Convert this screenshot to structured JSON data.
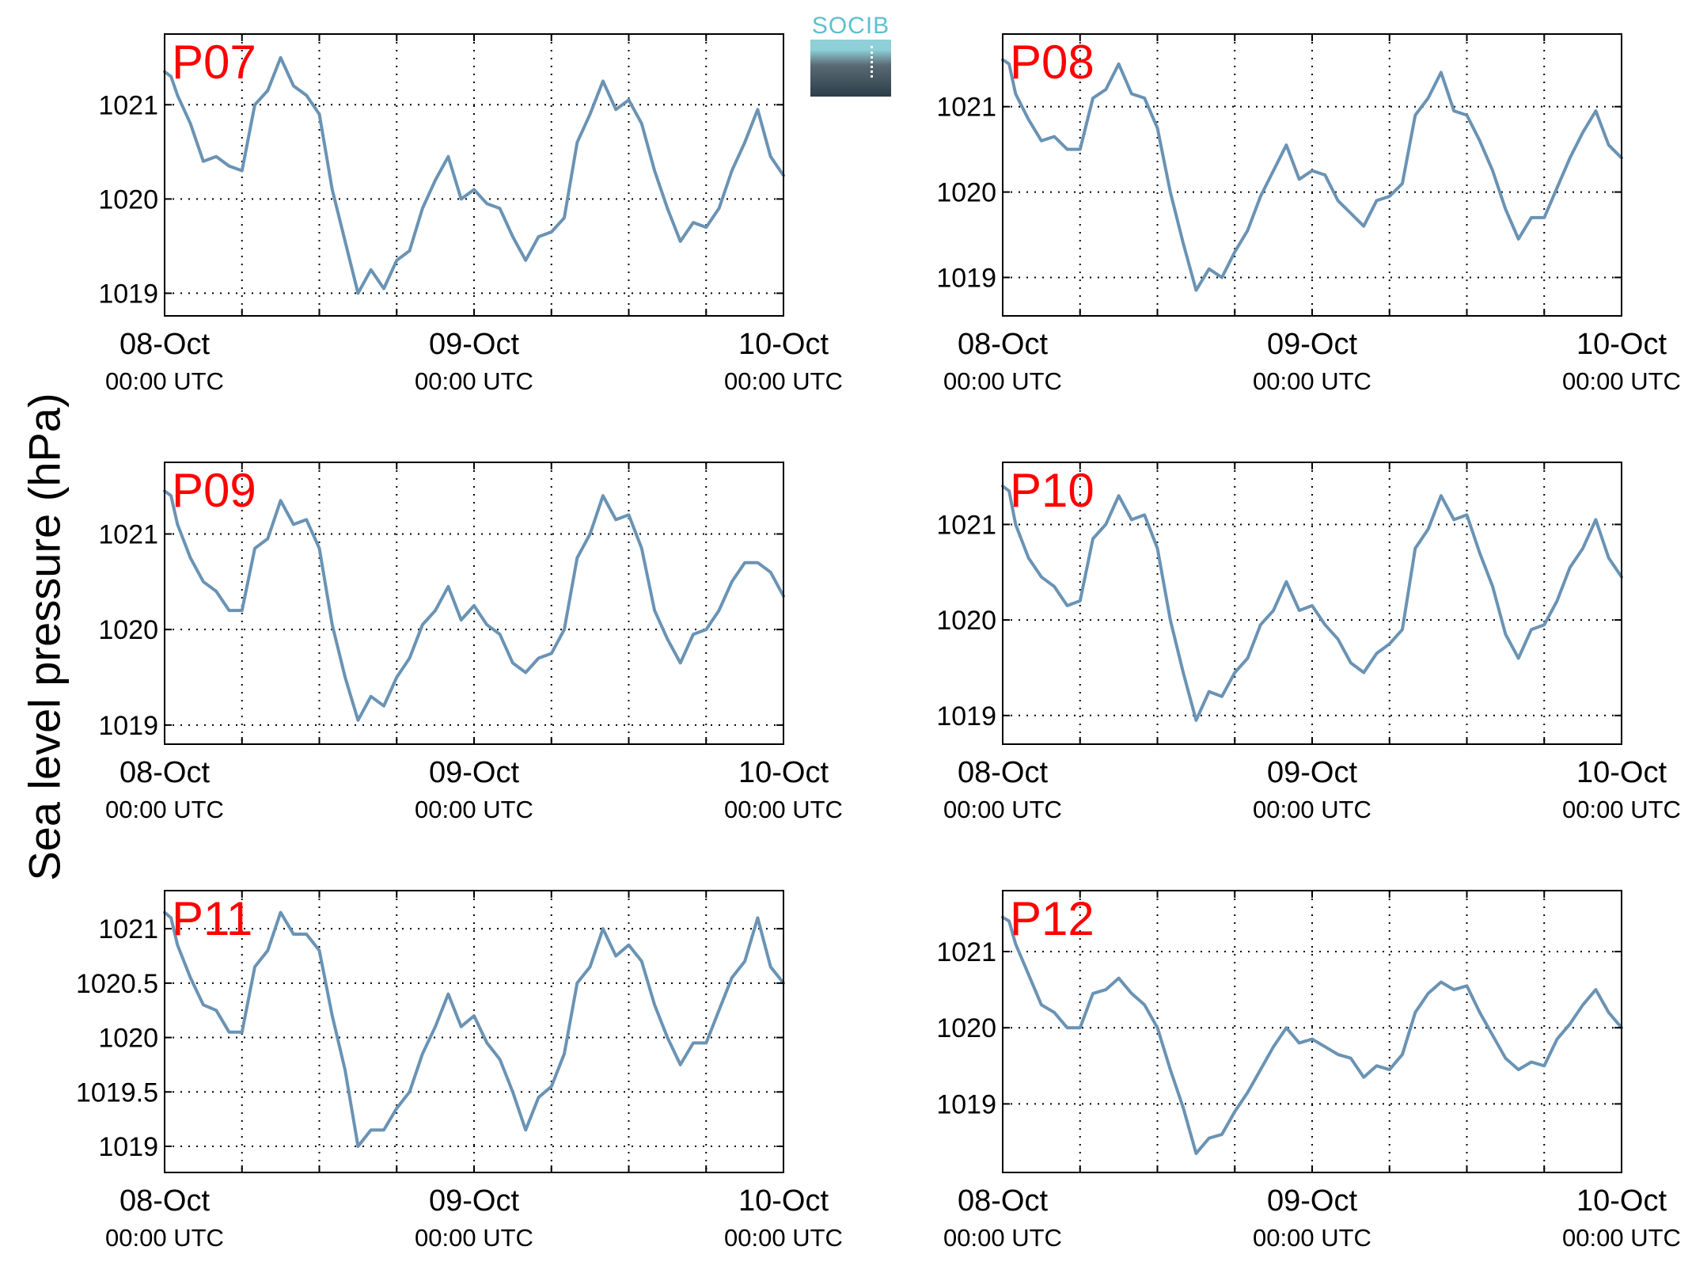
{
  "ylabel": "Sea level pressure (hPa)",
  "logo": {
    "text": "SOCIB"
  },
  "colors": {
    "line": "#6a93b4",
    "station_label": "#ff0000",
    "axis": "#000000",
    "grid": "#000000"
  },
  "chart_data": [
    {
      "type": "line",
      "title": "P07",
      "x_ticks": [
        "08-Oct",
        "09-Oct",
        "10-Oct"
      ],
      "x_tick_sublabel": "00:00 UTC",
      "x_range_hours": [
        0,
        48
      ],
      "ylim": [
        1018.76,
        1021.75
      ],
      "yticks": [
        1019,
        1020,
        1021
      ],
      "ytick_labels": [
        "1019",
        "1020",
        "1021"
      ],
      "x": [
        0,
        0.5,
        1,
        2,
        3,
        4,
        5,
        6,
        7,
        8,
        9,
        10,
        11,
        12,
        13,
        14,
        15,
        16,
        17,
        18,
        19,
        20,
        21,
        22,
        23,
        24,
        25,
        26,
        27,
        28,
        29,
        30,
        31,
        32,
        33,
        34,
        35,
        36,
        37,
        38,
        39,
        40,
        41,
        42,
        43,
        44,
        45,
        46,
        47,
        48
      ],
      "values": [
        1021.35,
        1021.3,
        1021.1,
        1020.8,
        1020.4,
        1020.45,
        1020.35,
        1020.3,
        1021,
        1021.15,
        1021.5,
        1021.2,
        1021.1,
        1020.9,
        1020.1,
        1019.55,
        1019.0,
        1019.25,
        1019.05,
        1019.35,
        1019.45,
        1019.9,
        1020.2,
        1020.45,
        1020.0,
        1020.1,
        1019.95,
        1019.9,
        1019.6,
        1019.35,
        1019.6,
        1019.65,
        1019.8,
        1020.6,
        1020.9,
        1021.25,
        1020.95,
        1021.05,
        1020.8,
        1020.3,
        1019.9,
        1019.55,
        1019.75,
        1019.7,
        1019.9,
        1020.3,
        1020.6,
        1020.95,
        1020.45,
        1020.25
      ]
    },
    {
      "type": "line",
      "title": "P08",
      "x_ticks": [
        "08-Oct",
        "09-Oct",
        "10-Oct"
      ],
      "x_tick_sublabel": "00:00 UTC",
      "x_range_hours": [
        0,
        48
      ],
      "ylim": [
        1018.55,
        1021.85
      ],
      "yticks": [
        1019,
        1020,
        1021
      ],
      "ytick_labels": [
        "1019",
        "1020",
        "1021"
      ],
      "x": [
        0,
        0.5,
        1,
        2,
        3,
        4,
        5,
        6,
        7,
        8,
        9,
        10,
        11,
        12,
        13,
        14,
        15,
        16,
        17,
        18,
        19,
        20,
        21,
        22,
        23,
        24,
        25,
        26,
        27,
        28,
        29,
        30,
        31,
        32,
        33,
        34,
        35,
        36,
        37,
        38,
        39,
        40,
        41,
        42,
        43,
        44,
        45,
        46,
        47,
        48
      ],
      "values": [
        1021.55,
        1021.5,
        1021.15,
        1020.85,
        1020.6,
        1020.65,
        1020.5,
        1020.5,
        1021.1,
        1021.2,
        1021.5,
        1021.15,
        1021.1,
        1020.75,
        1020,
        1019.4,
        1018.85,
        1019.1,
        1019,
        1019.3,
        1019.55,
        1019.95,
        1020.25,
        1020.55,
        1020.15,
        1020.25,
        1020.2,
        1019.9,
        1019.75,
        1019.6,
        1019.9,
        1019.95,
        1020.1,
        1020.9,
        1021.1,
        1021.4,
        1020.95,
        1020.9,
        1020.6,
        1020.25,
        1019.8,
        1019.45,
        1019.7,
        1019.7,
        1020.05,
        1020.4,
        1020.7,
        1020.95,
        1020.55,
        1020.4
      ]
    },
    {
      "type": "line",
      "title": "P09",
      "x_ticks": [
        "08-Oct",
        "09-Oct",
        "10-Oct"
      ],
      "x_tick_sublabel": "00:00 UTC",
      "x_range_hours": [
        0,
        48
      ],
      "ylim": [
        1018.8,
        1021.75
      ],
      "yticks": [
        1019,
        1020,
        1021
      ],
      "ytick_labels": [
        "1019",
        "1020",
        "1021"
      ],
      "x": [
        0,
        0.5,
        1,
        2,
        3,
        4,
        5,
        6,
        7,
        8,
        9,
        10,
        11,
        12,
        13,
        14,
        15,
        16,
        17,
        18,
        19,
        20,
        21,
        22,
        23,
        24,
        25,
        26,
        27,
        28,
        29,
        30,
        31,
        32,
        33,
        34,
        35,
        36,
        37,
        38,
        39,
        40,
        41,
        42,
        43,
        44,
        45,
        46,
        47,
        48
      ],
      "values": [
        1021.45,
        1021.4,
        1021.1,
        1020.75,
        1020.5,
        1020.4,
        1020.2,
        1020.2,
        1020.85,
        1020.95,
        1021.35,
        1021.1,
        1021.15,
        1020.85,
        1020.05,
        1019.5,
        1019.05,
        1019.3,
        1019.2,
        1019.5,
        1019.7,
        1020.05,
        1020.2,
        1020.45,
        1020.1,
        1020.25,
        1020.05,
        1019.95,
        1019.65,
        1019.55,
        1019.7,
        1019.75,
        1020,
        1020.75,
        1021,
        1021.4,
        1021.15,
        1021.2,
        1020.85,
        1020.2,
        1019.9,
        1019.65,
        1019.95,
        1020,
        1020.2,
        1020.5,
        1020.7,
        1020.7,
        1020.6,
        1020.35
      ]
    },
    {
      "type": "line",
      "title": "P10",
      "x_ticks": [
        "08-Oct",
        "09-Oct",
        "10-Oct"
      ],
      "x_tick_sublabel": "00:00 UTC",
      "x_range_hours": [
        0,
        48
      ],
      "ylim": [
        1018.7,
        1021.65
      ],
      "yticks": [
        1019,
        1020,
        1021
      ],
      "ytick_labels": [
        "1019",
        "1020",
        "1021"
      ],
      "x": [
        0,
        0.5,
        1,
        2,
        3,
        4,
        5,
        6,
        7,
        8,
        9,
        10,
        11,
        12,
        13,
        14,
        15,
        16,
        17,
        18,
        19,
        20,
        21,
        22,
        23,
        24,
        25,
        26,
        27,
        28,
        29,
        30,
        31,
        32,
        33,
        34,
        35,
        36,
        37,
        38,
        39,
        40,
        41,
        42,
        43,
        44,
        45,
        46,
        47,
        48
      ],
      "values": [
        1021.4,
        1021.35,
        1021,
        1020.65,
        1020.45,
        1020.35,
        1020.15,
        1020.2,
        1020.85,
        1021,
        1021.3,
        1021.05,
        1021.1,
        1020.75,
        1020,
        1019.45,
        1018.95,
        1019.25,
        1019.2,
        1019.45,
        1019.6,
        1019.95,
        1020.1,
        1020.4,
        1020.1,
        1020.15,
        1019.95,
        1019.8,
        1019.55,
        1019.45,
        1019.65,
        1019.75,
        1019.9,
        1020.75,
        1020.95,
        1021.3,
        1021.05,
        1021.1,
        1020.7,
        1020.35,
        1019.85,
        1019.6,
        1019.9,
        1019.95,
        1020.2,
        1020.55,
        1020.75,
        1021.05,
        1020.65,
        1020.45
      ]
    },
    {
      "type": "line",
      "title": "P11",
      "x_ticks": [
        "08-Oct",
        "09-Oct",
        "10-Oct"
      ],
      "x_tick_sublabel": "00:00 UTC",
      "x_range_hours": [
        0,
        48
      ],
      "ylim": [
        1018.76,
        1021.35
      ],
      "yticks": [
        1019,
        1019.5,
        1020,
        1020.5,
        1021
      ],
      "ytick_labels": [
        "1019",
        "1019.5",
        "1020",
        "1020.5",
        "1021"
      ],
      "x": [
        0,
        0.5,
        1,
        2,
        3,
        4,
        5,
        6,
        7,
        8,
        9,
        10,
        11,
        12,
        13,
        14,
        15,
        16,
        17,
        18,
        19,
        20,
        21,
        22,
        23,
        24,
        25,
        26,
        27,
        28,
        29,
        30,
        31,
        32,
        33,
        34,
        35,
        36,
        37,
        38,
        39,
        40,
        41,
        42,
        43,
        44,
        45,
        46,
        47,
        48
      ],
      "values": [
        1021.15,
        1021.1,
        1020.85,
        1020.55,
        1020.3,
        1020.25,
        1020.05,
        1020.05,
        1020.65,
        1020.8,
        1021.15,
        1020.95,
        1020.95,
        1020.8,
        1020.2,
        1019.7,
        1019.0,
        1019.15,
        1019.15,
        1019.35,
        1019.5,
        1019.85,
        1020.1,
        1020.4,
        1020.1,
        1020.2,
        1019.95,
        1019.8,
        1019.5,
        1019.15,
        1019.45,
        1019.55,
        1019.85,
        1020.5,
        1020.65,
        1021.0,
        1020.75,
        1020.85,
        1020.7,
        1020.3,
        1020.0,
        1019.75,
        1019.95,
        1019.95,
        1020.25,
        1020.55,
        1020.7,
        1021.1,
        1020.65,
        1020.5
      ]
    },
    {
      "type": "line",
      "title": "P12",
      "x_ticks": [
        "08-Oct",
        "09-Oct",
        "10-Oct"
      ],
      "x_tick_sublabel": "00:00 UTC",
      "x_range_hours": [
        0,
        48
      ],
      "ylim": [
        1018.1,
        1021.8
      ],
      "yticks": [
        1019,
        1020,
        1021
      ],
      "ytick_labels": [
        "1019",
        "1020",
        "1021"
      ],
      "x": [
        0,
        0.5,
        1,
        2,
        3,
        4,
        5,
        6,
        7,
        8,
        9,
        10,
        11,
        12,
        13,
        14,
        15,
        16,
        17,
        18,
        19,
        20,
        21,
        22,
        23,
        24,
        25,
        26,
        27,
        28,
        29,
        30,
        31,
        32,
        33,
        34,
        35,
        36,
        37,
        38,
        39,
        40,
        41,
        42,
        43,
        44,
        45,
        46,
        47,
        48
      ],
      "values": [
        1021.45,
        1021.4,
        1021.1,
        1020.7,
        1020.3,
        1020.2,
        1020,
        1020,
        1020.45,
        1020.5,
        1020.65,
        1020.45,
        1020.3,
        1020,
        1019.45,
        1018.95,
        1018.35,
        1018.55,
        1018.6,
        1018.9,
        1019.15,
        1019.45,
        1019.75,
        1020,
        1019.8,
        1019.85,
        1019.75,
        1019.65,
        1019.6,
        1019.35,
        1019.5,
        1019.45,
        1019.65,
        1020.2,
        1020.45,
        1020.6,
        1020.5,
        1020.55,
        1020.2,
        1019.9,
        1019.6,
        1019.45,
        1019.55,
        1019.5,
        1019.85,
        1020.05,
        1020.3,
        1020.5,
        1020.2,
        1020.0
      ]
    }
  ]
}
